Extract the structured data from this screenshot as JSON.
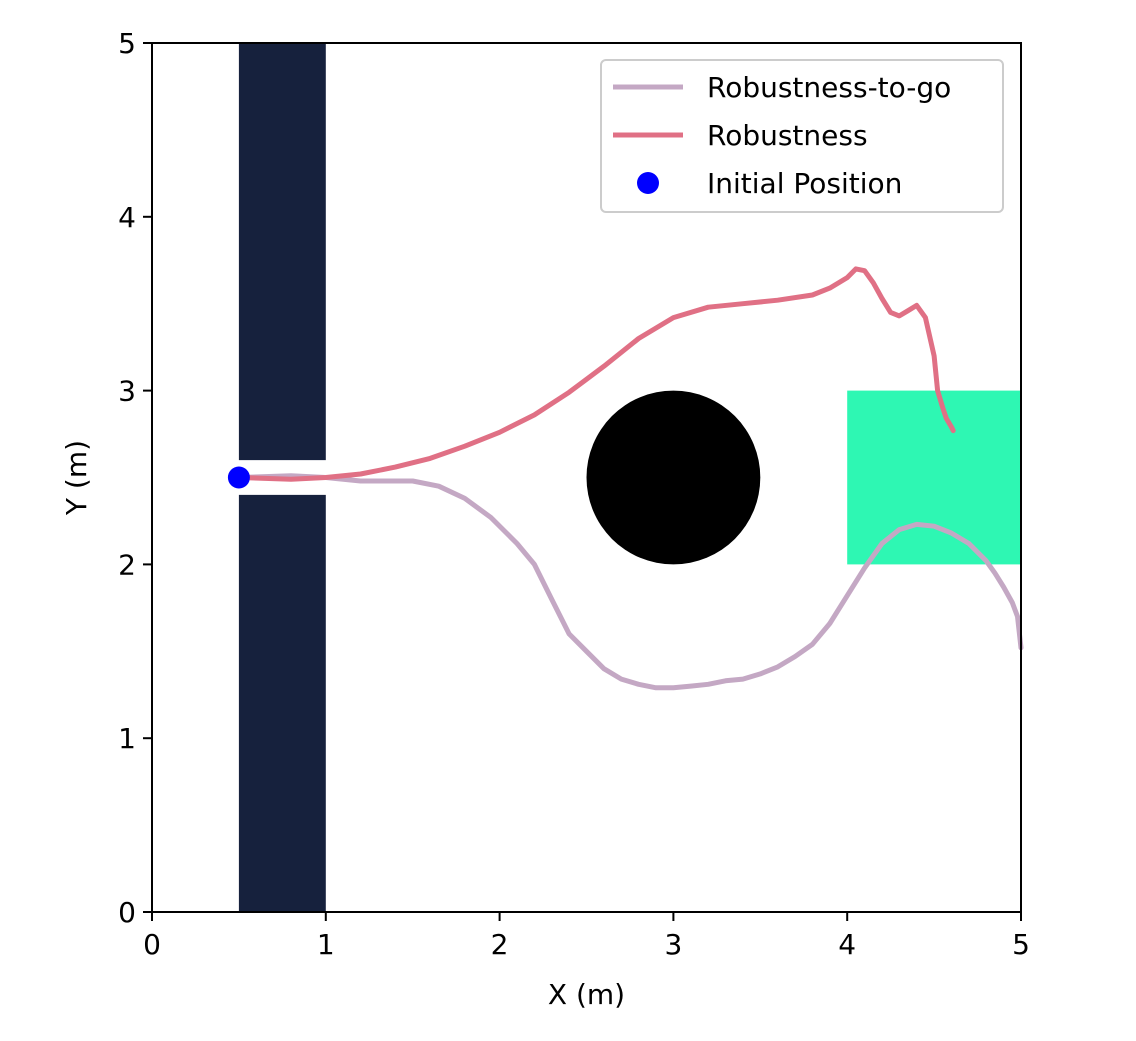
{
  "chart_data": {
    "type": "line",
    "title": "",
    "xlabel": "X (m)",
    "ylabel": "Y (m)",
    "xlim": [
      0,
      5
    ],
    "ylim": [
      0,
      5
    ],
    "xticks": [
      "0",
      "1",
      "2",
      "3",
      "4",
      "5"
    ],
    "yticks": [
      "0",
      "1",
      "2",
      "3",
      "4",
      "5"
    ],
    "grid": false,
    "legend_position": "top-right",
    "regions": [
      {
        "name": "wall-lower",
        "kind": "rect",
        "x": [
          0.5,
          1.0
        ],
        "y": [
          0.0,
          2.4
        ],
        "color": "#16213d"
      },
      {
        "name": "wall-upper",
        "kind": "rect",
        "x": [
          0.5,
          1.0
        ],
        "y": [
          2.6,
          5.0
        ],
        "color": "#16213d"
      },
      {
        "name": "obstacle",
        "kind": "circle",
        "center": [
          3.0,
          2.5
        ],
        "radius": 0.5,
        "color": "#000000"
      },
      {
        "name": "goal",
        "kind": "rect",
        "x": [
          4.0,
          5.0
        ],
        "y": [
          2.0,
          3.0
        ],
        "color": "#2ef7b3"
      }
    ],
    "series": [
      {
        "name": "Robustness-to-go",
        "color": "#c4a8c4",
        "kind": "line",
        "x": [
          0.5,
          0.8,
          1.0,
          1.2,
          1.5,
          1.65,
          1.8,
          1.95,
          2.1,
          2.2,
          2.3,
          2.4,
          2.5,
          2.6,
          2.7,
          2.8,
          2.9,
          3.0,
          3.1,
          3.2,
          3.3,
          3.4,
          3.5,
          3.6,
          3.7,
          3.8,
          3.9,
          4.0,
          4.1,
          4.2,
          4.3,
          4.4,
          4.5,
          4.6,
          4.7,
          4.8,
          4.85,
          4.9,
          4.95,
          4.98,
          5.0
        ],
        "y": [
          2.5,
          2.51,
          2.5,
          2.48,
          2.48,
          2.45,
          2.38,
          2.27,
          2.12,
          2.0,
          1.8,
          1.6,
          1.5,
          1.4,
          1.34,
          1.31,
          1.29,
          1.29,
          1.3,
          1.31,
          1.33,
          1.34,
          1.37,
          1.41,
          1.47,
          1.54,
          1.66,
          1.82,
          1.98,
          2.12,
          2.2,
          2.23,
          2.22,
          2.18,
          2.12,
          2.02,
          1.95,
          1.87,
          1.78,
          1.7,
          1.52
        ]
      },
      {
        "name": "Robustness",
        "color": "#e07085",
        "kind": "line",
        "x": [
          0.5,
          0.8,
          1.0,
          1.2,
          1.4,
          1.6,
          1.8,
          2.0,
          2.2,
          2.4,
          2.6,
          2.8,
          3.0,
          3.2,
          3.4,
          3.6,
          3.8,
          3.9,
          4.0,
          4.05,
          4.1,
          4.15,
          4.2,
          4.25,
          4.3,
          4.35,
          4.4,
          4.45,
          4.5,
          4.52,
          4.55,
          4.57,
          4.6,
          4.61
        ],
        "y": [
          2.5,
          2.49,
          2.5,
          2.52,
          2.56,
          2.61,
          2.68,
          2.76,
          2.86,
          2.99,
          3.14,
          3.3,
          3.42,
          3.48,
          3.5,
          3.52,
          3.55,
          3.59,
          3.65,
          3.7,
          3.69,
          3.62,
          3.53,
          3.45,
          3.43,
          3.46,
          3.49,
          3.42,
          3.2,
          3.0,
          2.9,
          2.84,
          2.79,
          2.77
        ]
      },
      {
        "name": "Initial Position",
        "color": "#0000ff",
        "kind": "point",
        "x": [
          0.5
        ],
        "y": [
          2.5
        ]
      }
    ]
  }
}
